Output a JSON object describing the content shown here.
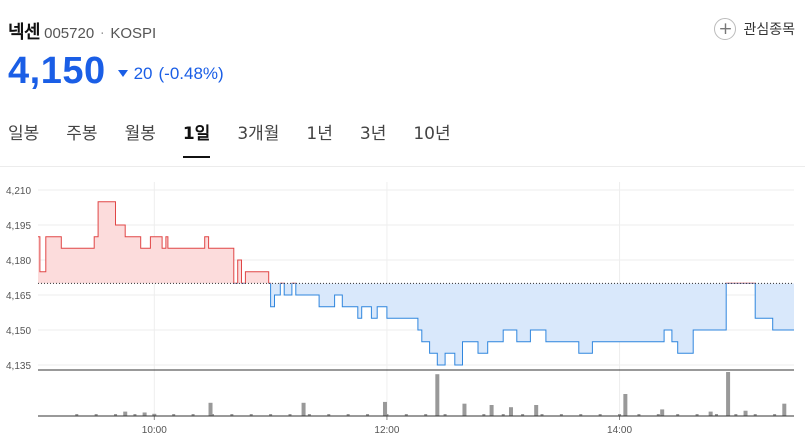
{
  "stock": {
    "name": "넥센",
    "code": "005720",
    "separator": "·",
    "market": "KOSPI"
  },
  "watchlist": {
    "label": "관심종목",
    "icon": "plus-circle-icon"
  },
  "quote": {
    "price": "4,150",
    "direction": "down",
    "change": "20",
    "change_pct": "(-0.48%)",
    "color_down": "#1a5ee6",
    "color_up": "#e04646"
  },
  "tabs": [
    {
      "label": "일봉",
      "active": false
    },
    {
      "label": "주봉",
      "active": false
    },
    {
      "label": "월봉",
      "active": false
    },
    {
      "label": "1일",
      "active": true
    },
    {
      "label": "3개월",
      "active": false
    },
    {
      "label": "1년",
      "active": false
    },
    {
      "label": "3년",
      "active": false
    },
    {
      "label": "10년",
      "active": false
    }
  ],
  "chart_data": {
    "type": "area",
    "reference_price": 4170,
    "ylim": [
      4135,
      4210
    ],
    "y_ticks": [
      "4,210",
      "4,195",
      "4,180",
      "4,165",
      "4,150",
      "4,135"
    ],
    "x_ticks": [
      "10:00",
      "12:00",
      "14:00"
    ],
    "time_range": [
      "09:00",
      "15:30"
    ],
    "grid": true,
    "above_color": "#e04646",
    "below_color": "#2f86de",
    "price_series": [
      [
        "09:00",
        4190
      ],
      [
        "09:01",
        4175
      ],
      [
        "09:04",
        4190
      ],
      [
        "09:12",
        4185
      ],
      [
        "09:29",
        4190
      ],
      [
        "09:31",
        4205
      ],
      [
        "09:40",
        4195
      ],
      [
        "09:45",
        4190
      ],
      [
        "09:53",
        4185
      ],
      [
        "09:58",
        4190
      ],
      [
        "10:04",
        4185
      ],
      [
        "10:06",
        4190
      ],
      [
        "10:07",
        4185
      ],
      [
        "10:26",
        4190
      ],
      [
        "10:28",
        4185
      ],
      [
        "10:41",
        4170
      ],
      [
        "10:43",
        4180
      ],
      [
        "10:45",
        4170
      ],
      [
        "10:47",
        4175
      ],
      [
        "10:59",
        4170
      ],
      [
        "11:00",
        4160
      ],
      [
        "11:02",
        4165
      ],
      [
        "11:05",
        4170
      ],
      [
        "11:07",
        4165
      ],
      [
        "11:11",
        4170
      ],
      [
        "11:13",
        4165
      ],
      [
        "11:17",
        4165
      ],
      [
        "11:25",
        4160
      ],
      [
        "11:33",
        4165
      ],
      [
        "11:37",
        4160
      ],
      [
        "11:45",
        4155
      ],
      [
        "11:47",
        4160
      ],
      [
        "11:52",
        4155
      ],
      [
        "11:55",
        4160
      ],
      [
        "12:00",
        4155
      ],
      [
        "12:16",
        4150
      ],
      [
        "12:18",
        4145
      ],
      [
        "12:22",
        4140
      ],
      [
        "12:26",
        4135
      ],
      [
        "12:30",
        4140
      ],
      [
        "12:35",
        4135
      ],
      [
        "12:39",
        4145
      ],
      [
        "12:47",
        4140
      ],
      [
        "12:52",
        4145
      ],
      [
        "13:00",
        4150
      ],
      [
        "13:07",
        4145
      ],
      [
        "13:14",
        4150
      ],
      [
        "13:22",
        4145
      ],
      [
        "13:39",
        4140
      ],
      [
        "13:46",
        4145
      ],
      [
        "14:00",
        4145
      ],
      [
        "14:23",
        4150
      ],
      [
        "14:27",
        4145
      ],
      [
        "14:30",
        4140
      ],
      [
        "14:38",
        4150
      ],
      [
        "14:55",
        4170
      ],
      [
        "15:10",
        4155
      ],
      [
        "15:19",
        4150
      ],
      [
        "15:30",
        4150
      ]
    ],
    "volume_series": [
      [
        "09:45",
        0.1
      ],
      [
        "09:55",
        0.08
      ],
      [
        "10:00",
        0.05
      ],
      [
        "10:29",
        0.3
      ],
      [
        "11:17",
        0.3
      ],
      [
        "11:59",
        0.32
      ],
      [
        "12:26",
        0.95
      ],
      [
        "12:40",
        0.28
      ],
      [
        "12:54",
        0.25
      ],
      [
        "13:04",
        0.2
      ],
      [
        "13:17",
        0.25
      ],
      [
        "14:03",
        0.5
      ],
      [
        "14:22",
        0.15
      ],
      [
        "14:47",
        0.1
      ],
      [
        "14:56",
        1.0
      ],
      [
        "15:05",
        0.12
      ],
      [
        "15:25",
        0.28
      ]
    ]
  }
}
